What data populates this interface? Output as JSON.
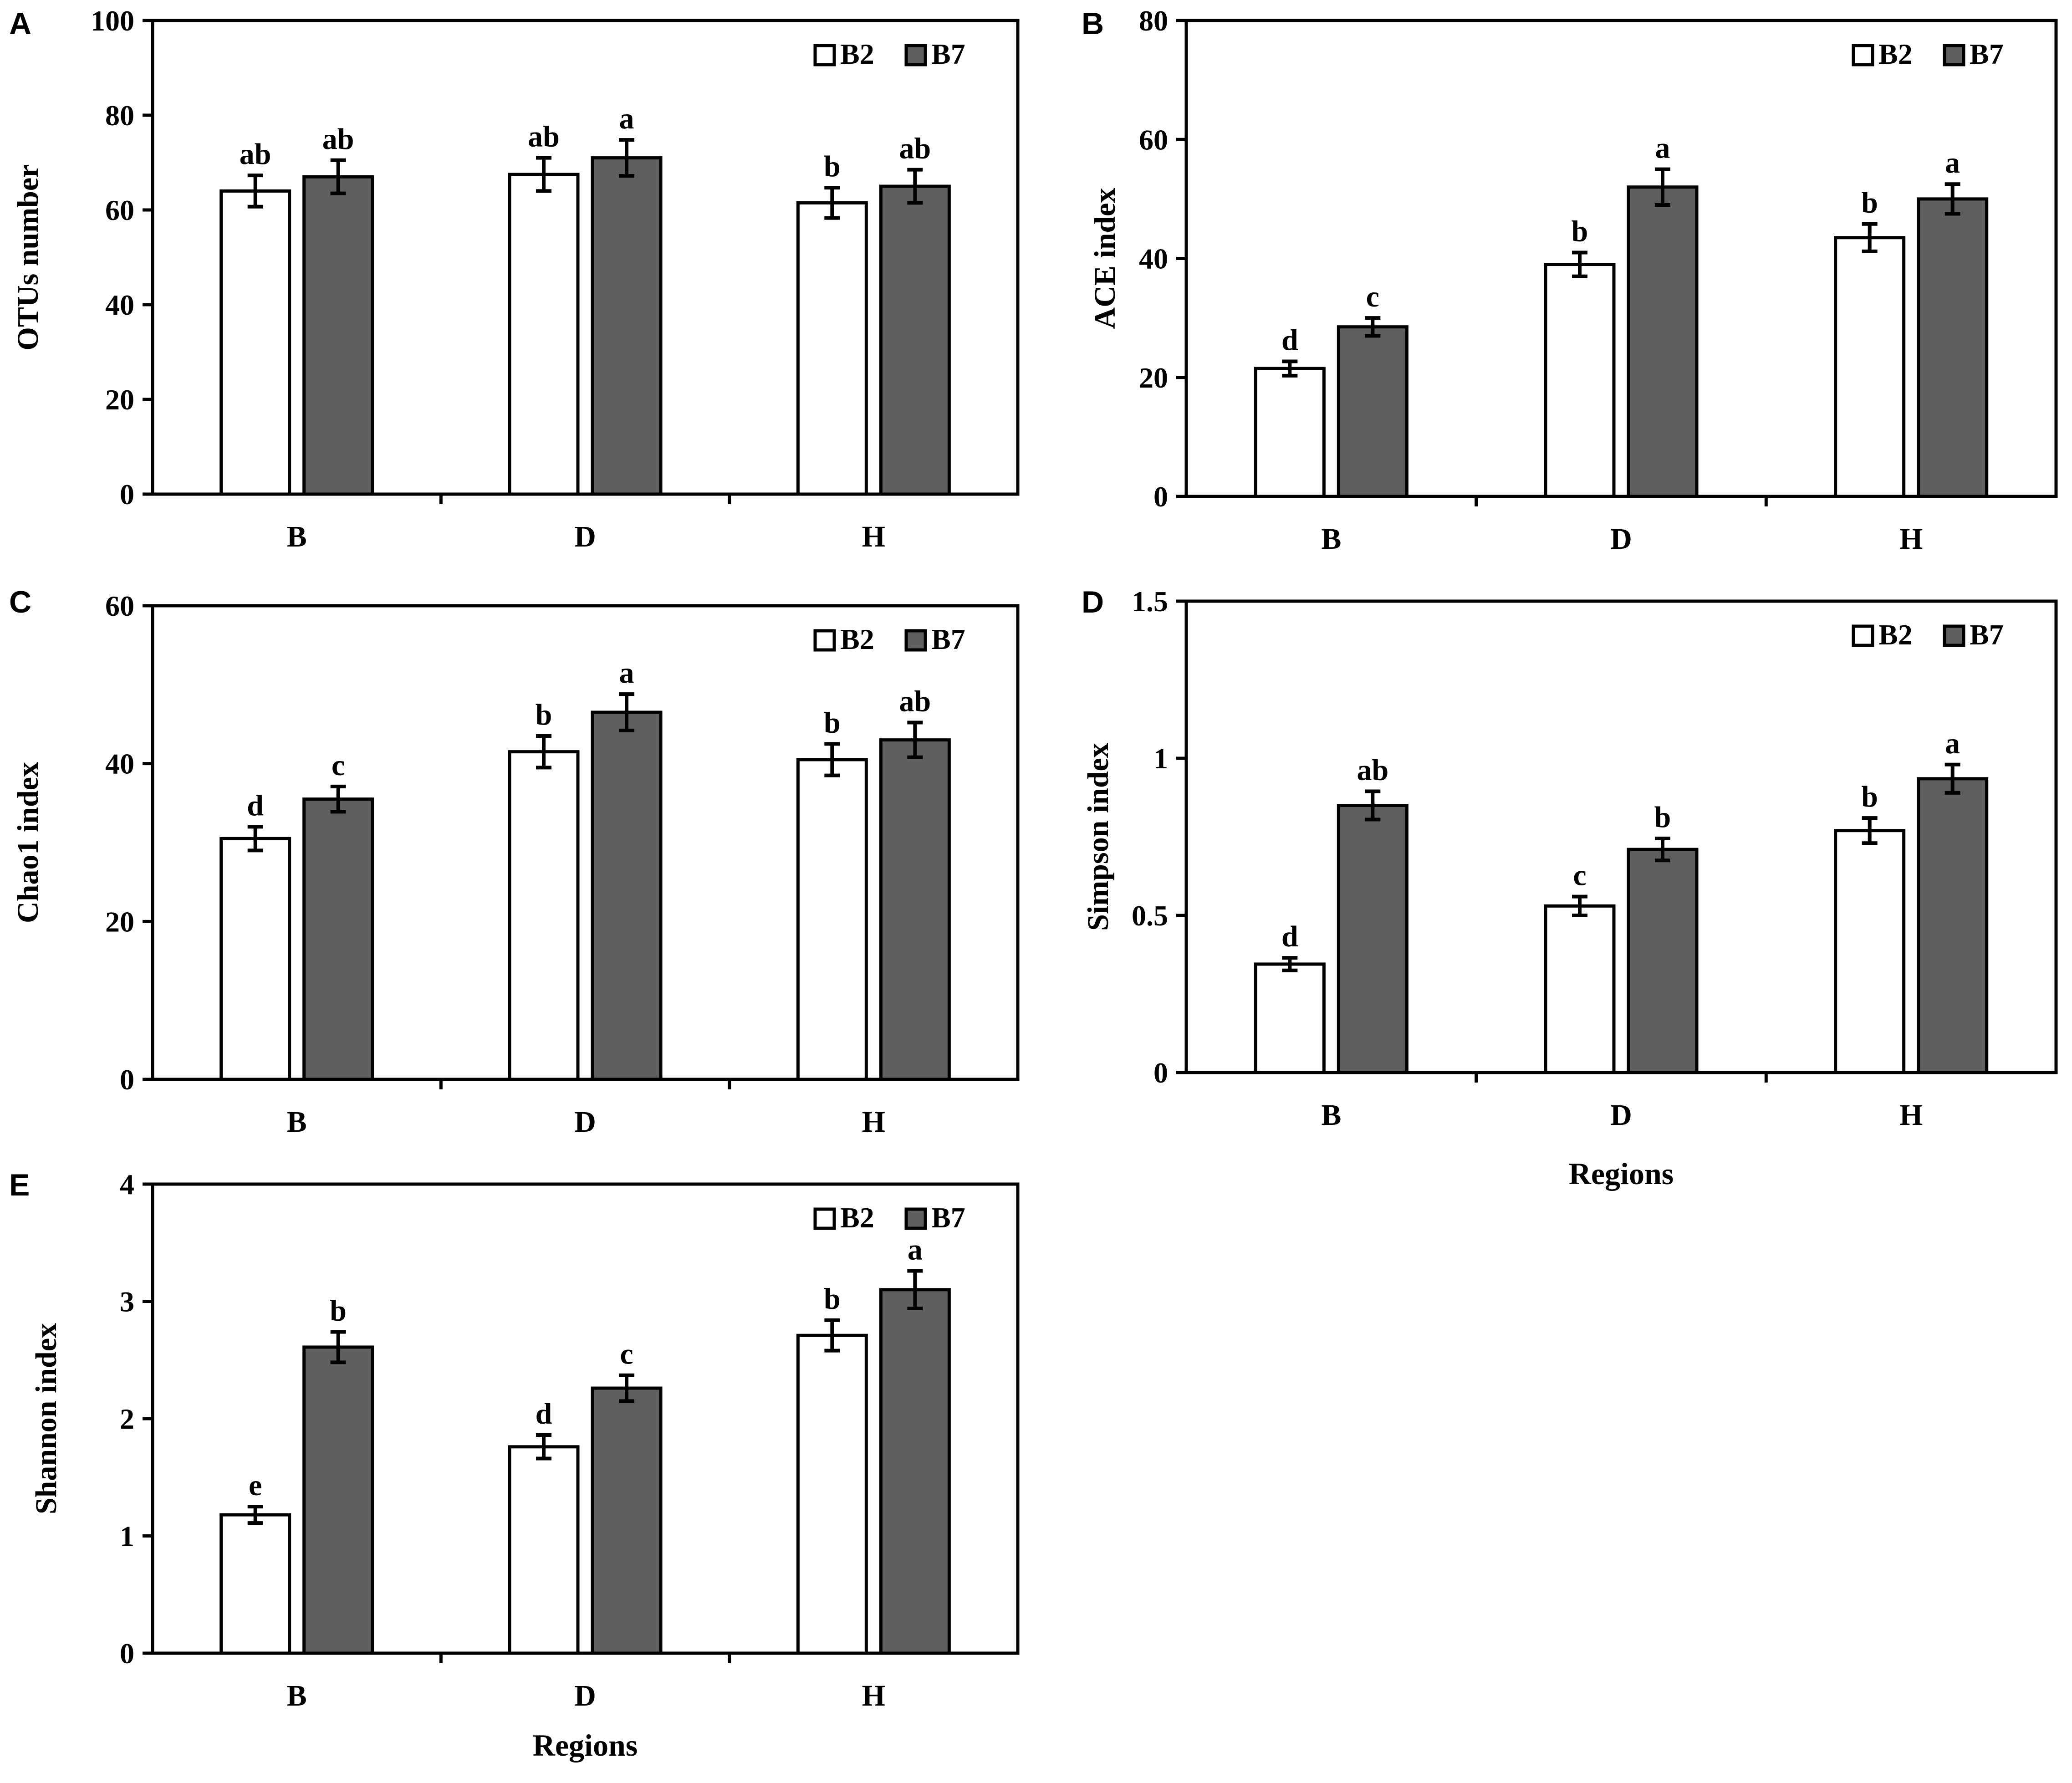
{
  "figure": {
    "colors": {
      "B2": "#ffffff",
      "B7": "#5f5f5f",
      "axis": "#000000"
    }
  },
  "chart_data": [
    {
      "panel": "A",
      "type": "bar",
      "title": "",
      "xlabel": "",
      "ylabel": "OTUs number",
      "ylim": [
        0,
        100
      ],
      "yticks": [
        0,
        20,
        40,
        60,
        80,
        100
      ],
      "ytick_labels": [
        "0",
        "20",
        "40",
        "60",
        "80",
        "100"
      ],
      "legend": [
        "B2",
        "B7"
      ],
      "legend_position": "top-right",
      "categories": [
        "B",
        "D",
        "H"
      ],
      "series": [
        {
          "name": "B2",
          "values": [
            64,
            67.5,
            61.5
          ],
          "errors": [
            3.3,
            3.5,
            3.2
          ],
          "letters": [
            "ab",
            "ab",
            "b"
          ]
        },
        {
          "name": "B7",
          "values": [
            67,
            71,
            65
          ],
          "errors": [
            3.5,
            3.8,
            3.5
          ],
          "letters": [
            "ab",
            "a",
            "ab"
          ]
        }
      ]
    },
    {
      "panel": "B",
      "type": "bar",
      "title": "",
      "xlabel": "",
      "ylabel": "ACE index",
      "ylim": [
        0,
        80
      ],
      "yticks": [
        0,
        20,
        40,
        60,
        80
      ],
      "ytick_labels": [
        "0",
        "20",
        "40",
        "60",
        "80"
      ],
      "legend": [
        "B2",
        "B7"
      ],
      "legend_position": "top-right",
      "categories": [
        "B",
        "D",
        "H"
      ],
      "series": [
        {
          "name": "B2",
          "values": [
            21.5,
            39,
            43.5
          ],
          "errors": [
            1.2,
            2.0,
            2.3
          ],
          "letters": [
            "d",
            "b",
            "b"
          ]
        },
        {
          "name": "B7",
          "values": [
            28.5,
            52,
            50
          ],
          "errors": [
            1.5,
            3.0,
            2.5
          ],
          "letters": [
            "c",
            "a",
            "a"
          ]
        }
      ]
    },
    {
      "panel": "C",
      "type": "bar",
      "title": "",
      "xlabel": "",
      "ylabel": "Chao1 index",
      "ylim": [
        0,
        60
      ],
      "yticks": [
        0,
        20,
        40,
        60
      ],
      "ytick_labels": [
        "0",
        "20",
        "40",
        "60"
      ],
      "legend": [
        "B2",
        "B7"
      ],
      "legend_position": "top-right",
      "categories": [
        "B",
        "D",
        "H"
      ],
      "series": [
        {
          "name": "B2",
          "values": [
            30.5,
            41.5,
            40.5
          ],
          "errors": [
            1.5,
            2.0,
            2.0
          ],
          "letters": [
            "d",
            "b",
            "b"
          ]
        },
        {
          "name": "B7",
          "values": [
            35.5,
            46.5,
            43
          ],
          "errors": [
            1.6,
            2.3,
            2.2
          ],
          "letters": [
            "c",
            "a",
            "ab"
          ]
        }
      ]
    },
    {
      "panel": "D",
      "type": "bar",
      "title": "",
      "xlabel": "Regions",
      "ylabel": "Simpson index",
      "ylim": [
        0,
        1.5
      ],
      "yticks": [
        0,
        0.5,
        1,
        1.5
      ],
      "ytick_labels": [
        "0",
        "0.5",
        "1",
        "1.5"
      ],
      "legend": [
        "B2",
        "B7"
      ],
      "legend_position": "top-right",
      "categories": [
        "B",
        "D",
        "H"
      ],
      "series": [
        {
          "name": "B2",
          "values": [
            0.345,
            0.53,
            0.77
          ],
          "errors": [
            0.02,
            0.03,
            0.04
          ],
          "letters": [
            "d",
            "c",
            "b"
          ]
        },
        {
          "name": "B7",
          "values": [
            0.85,
            0.71,
            0.935
          ],
          "errors": [
            0.045,
            0.035,
            0.045
          ],
          "letters": [
            "ab",
            "b",
            "a"
          ]
        }
      ]
    },
    {
      "panel": "E",
      "type": "bar",
      "title": "",
      "xlabel": "Regions",
      "ylabel": "Shannon index",
      "ylim": [
        0,
        4
      ],
      "yticks": [
        0,
        1,
        2,
        3,
        4
      ],
      "ytick_labels": [
        "0",
        "1",
        "2",
        "3",
        "4"
      ],
      "legend": [
        "B2",
        "B7"
      ],
      "legend_position": "top-right",
      "categories": [
        "B",
        "D",
        "H"
      ],
      "series": [
        {
          "name": "B2",
          "values": [
            1.18,
            1.76,
            2.71
          ],
          "errors": [
            0.07,
            0.1,
            0.13
          ],
          "letters": [
            "e",
            "d",
            "b"
          ]
        },
        {
          "name": "B7",
          "values": [
            2.61,
            2.26,
            3.1
          ],
          "errors": [
            0.13,
            0.11,
            0.16
          ],
          "letters": [
            "b",
            "c",
            "a"
          ]
        }
      ]
    }
  ]
}
